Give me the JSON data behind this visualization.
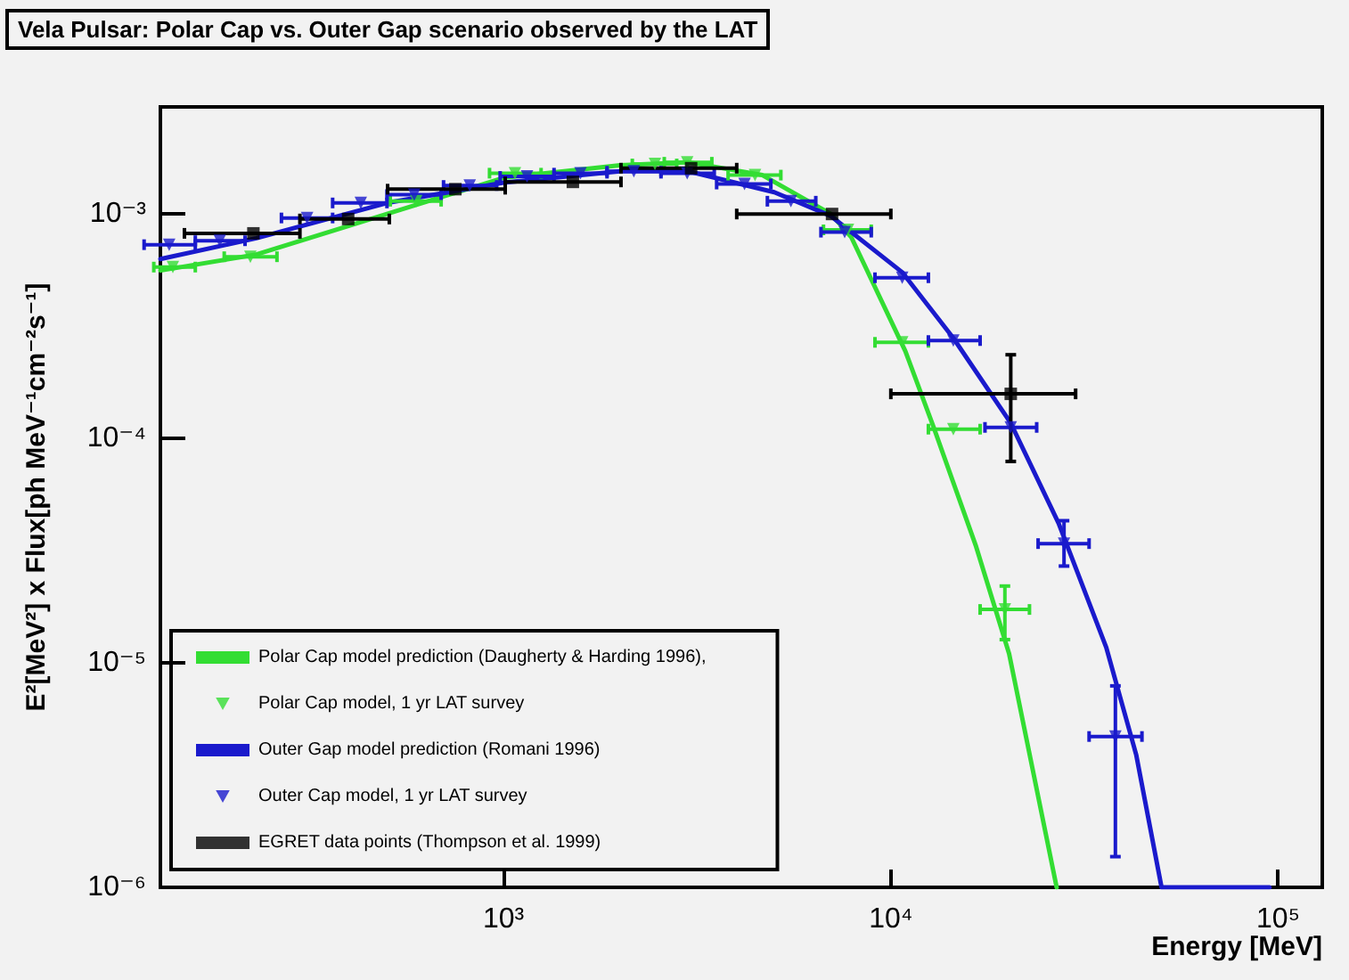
{
  "chart_data": {
    "type": "line",
    "title": "Vela Pulsar: Polar Cap vs. Outer Gap scenario observed by the LAT",
    "xlabel": "Energy [MeV]",
    "ylabel": "E²[MeV²] x Flux[ph MeV⁻¹cm⁻²s⁻¹]",
    "log": "xy",
    "grid": false,
    "legend": "bottom left",
    "xlim": [
      130,
      130000
    ],
    "xticks": [
      {
        "value": 1000,
        "label": "10³"
      },
      {
        "value": 10000,
        "label": "10⁴"
      },
      {
        "value": 100000,
        "label": "10⁵"
      }
    ],
    "ylim": [
      1e-06,
      0.003
    ],
    "yticks": [
      {
        "value": 1e-06,
        "label": "10⁻⁶"
      },
      {
        "value": 1e-05,
        "label": "10⁻⁵"
      },
      {
        "value": 0.0001,
        "label": "10⁻⁴"
      },
      {
        "value": 0.001,
        "label": "10⁻³"
      }
    ],
    "series": [
      {
        "name": "Polar Cap model prediction (Daugherty & Harding 1996),",
        "marker": "none",
        "color": "#33dd33",
        "x": [
          130,
          230,
          500,
          1000,
          2000,
          3000,
          4660,
          7000,
          7900,
          10900,
          12900,
          16600,
          20200,
          26800
        ],
        "values": [
          0.00056,
          0.00066,
          0.001,
          0.00145,
          0.00165,
          0.0017,
          0.00149,
          0.001,
          0.00079,
          0.000245,
          0.000112,
          3.3e-05,
          1.1e-05,
          1e-06
        ]
      },
      {
        "name": "Polar Cap model, 1 yr LAT survey",
        "type": "scatter",
        "marker": "triangle",
        "color": "#33dd33",
        "x": [
          140,
          222,
          595,
          1070,
          2460,
          2980,
          4460,
          7750,
          10700,
          14500,
          19700
        ],
        "values": [
          0.00058,
          0.000645,
          0.00114,
          0.00152,
          0.00167,
          0.0017,
          0.00149,
          0.00085,
          0.000268,
          0.00011,
          1.73e-05
        ],
        "xerrors": [
          [
            125,
            160
          ],
          [
            190,
            260
          ],
          [
            510,
            690
          ],
          [
            920,
            1250
          ],
          [
            2150,
            2800
          ],
          [
            2600,
            3450
          ],
          [
            3800,
            5200
          ],
          [
            6700,
            8900
          ],
          [
            9100,
            12500
          ],
          [
            12500,
            17000
          ],
          [
            17000,
            22800
          ]
        ],
        "errors": [
          null,
          null,
          null,
          null,
          null,
          null,
          null,
          null,
          null,
          null,
          [
            1.27e-05,
            2.2e-05
          ]
        ]
      },
      {
        "name": "Outer Gap model prediction (Romani 1996)",
        "marker": "none",
        "color": "#1a1acc",
        "x": [
          130,
          230,
          500,
          1000,
          2000,
          3000,
          5000,
          7000,
          10700,
          14500,
          20400,
          27100,
          36000,
          43000,
          50000,
          95000
        ],
        "values": [
          0.00063,
          0.00078,
          0.00112,
          0.00138,
          0.00155,
          0.00155,
          0.00125,
          0.00098,
          0.00055,
          0.00028,
          0.000117,
          4.2e-05,
          1.17e-05,
          3.9e-06,
          1e-06,
          1e-06
        ]
      },
      {
        "name": "Outer Cap model, 1 yr LAT survey",
        "type": "scatter",
        "marker": "triangle",
        "color": "#1a1acc",
        "x": [
          137,
          185,
          311,
          428,
          588,
          818,
          1150,
          1580,
          2170,
          2980,
          4190,
          5520,
          7600,
          10700,
          14500,
          20400,
          28000,
          38000
        ],
        "values": [
          0.00073,
          0.00076,
          0.00096,
          0.00112,
          0.00122,
          0.00134,
          0.00147,
          0.00152,
          0.00155,
          0.00152,
          0.00136,
          0.00114,
          0.00083,
          0.00052,
          0.000273,
          0.000112,
          3.4e-05,
          4.7e-06
        ],
        "xerrors": [
          [
            118,
            160
          ],
          [
            160,
            215
          ],
          [
            267,
            362
          ],
          [
            362,
            500
          ],
          [
            500,
            690
          ],
          [
            700,
            960
          ],
          [
            980,
            1350
          ],
          [
            1350,
            1850
          ],
          [
            1850,
            2550
          ],
          [
            2550,
            3500
          ],
          [
            3550,
            4900
          ],
          [
            4800,
            6400
          ],
          [
            6600,
            8900
          ],
          [
            9100,
            12500
          ],
          [
            12500,
            17000
          ],
          [
            17500,
            23800
          ],
          [
            24000,
            32500
          ],
          [
            32500,
            44500
          ]
        ],
        "errors": [
          null,
          null,
          null,
          null,
          null,
          null,
          null,
          null,
          null,
          null,
          null,
          null,
          null,
          null,
          null,
          null,
          [
            2.7e-05,
            4.3e-05
          ],
          [
            1.37e-06,
            7.9e-06
          ]
        ]
      },
      {
        "name": "EGRET data points (Thompson et al. 1999)",
        "type": "scatter",
        "marker": "square",
        "color": "#000000",
        "x": [
          226,
          397,
          751,
          1510,
          3050,
          7050,
          20400
        ],
        "values": [
          0.00082,
          0.00095,
          0.00129,
          0.00139,
          0.0016,
          0.001,
          0.000158
        ],
        "xerrors": [
          [
            150,
            298
          ],
          [
            298,
            507
          ],
          [
            502,
            1010
          ],
          [
            1010,
            2010
          ],
          [
            2010,
            4000
          ],
          [
            4000,
            10000
          ],
          [
            10000,
            30000
          ]
        ],
        "errors": [
          null,
          null,
          null,
          null,
          null,
          null,
          [
            7.9e-05,
            0.000236
          ]
        ]
      }
    ]
  }
}
